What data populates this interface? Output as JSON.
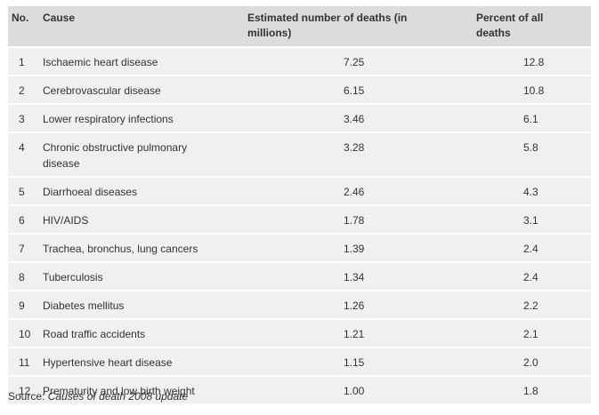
{
  "table": {
    "headers": {
      "no": "No.",
      "cause": "Cause",
      "deaths_line1": "Estimated number of deaths (in",
      "deaths_line2": "millions)",
      "percent_line1": "Percent of all",
      "percent_line2": "deaths"
    },
    "rows": [
      {
        "no": "1",
        "cause": "Ischaemic heart disease",
        "deaths": "7.25",
        "percent": "12.8"
      },
      {
        "no": "2",
        "cause": "Cerebrovascular disease",
        "deaths": "6.15",
        "percent": "10.8"
      },
      {
        "no": "3",
        "cause": "Lower respiratory infections",
        "deaths": "3.46",
        "percent": "6.1"
      },
      {
        "no": "4",
        "cause_line1": "Chronic obstructive pulmonary",
        "cause_line2": "disease",
        "deaths": "3.28",
        "percent": "5.8"
      },
      {
        "no": "5",
        "cause": "Diarrhoeal diseases",
        "deaths": "2.46",
        "percent": "4.3"
      },
      {
        "no": "6",
        "cause": "HIV/AIDS",
        "deaths": "1.78",
        "percent": "3.1"
      },
      {
        "no": "7",
        "cause": "Trachea, bronchus, lung cancers",
        "deaths": "1.39",
        "percent": "2.4"
      },
      {
        "no": "8",
        "cause": "Tuberculosis",
        "deaths": "1.34",
        "percent": "2.4"
      },
      {
        "no": "9",
        "cause": "Diabetes mellitus",
        "deaths": "1.26",
        "percent": "2.2"
      },
      {
        "no": "10",
        "cause": "Road traffic accidents",
        "deaths": "1.21",
        "percent": "2.1"
      },
      {
        "no": "11",
        "cause": "Hypertensive heart disease",
        "deaths": "1.15",
        "percent": "2.0"
      },
      {
        "no": "12",
        "cause": "Prematurity and low birth weight",
        "deaths": "1.00",
        "percent": "1.8"
      }
    ]
  },
  "source": {
    "label": "Source: ",
    "title": "Causes of death 2008 update"
  }
}
